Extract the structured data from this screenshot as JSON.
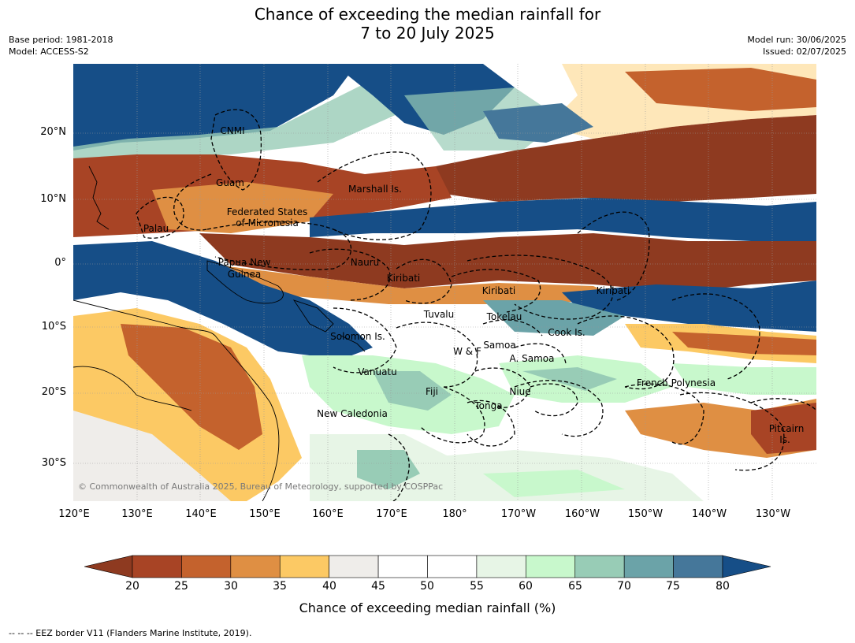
{
  "title": {
    "line1": "Chance of exceeding the median rainfall for",
    "line2": "7 to 20 July 2025"
  },
  "meta": {
    "base_period": "Base period: 1981-2018",
    "model": "Model: ACCESS-S2",
    "model_run": "Model run: 30/06/2025",
    "issued": "Issued: 02/07/2025"
  },
  "lat_labels": [
    "20°N",
    "10°N",
    "0°",
    "10°S",
    "20°S",
    "30°S"
  ],
  "lon_labels": [
    "120°E",
    "130°E",
    "140°E",
    "150°E",
    "160°E",
    "170°E",
    "180°",
    "170°W",
    "160°W",
    "150°W",
    "140°W",
    "130°W"
  ],
  "regions": {
    "cnmi": "CNMI",
    "guam": "Guam",
    "marshall": "Marshall Is.",
    "fsm_1": "Federated States",
    "fsm_2": "of Micronesia",
    "palau": "Palau",
    "png_1": "Papua New",
    "png_2": "Guinea",
    "nauru": "Nauru",
    "kiribati_w": "Kiribati",
    "kiribati_c": "Kiribati",
    "kiribati_e": "Kiribati",
    "tuvalu": "Tuvalu",
    "tokelau": "Tokelau",
    "cook": "Cook Is.",
    "solomon": "Solomon Is.",
    "samoa": "Samoa",
    "wf": "W & F",
    "asamoa": "A. Samoa",
    "vanuatu": "Vanuatu",
    "fiji": "Fiji",
    "niue": "Niue",
    "tonga": "Tonga",
    "frenchpoly": "French Polynesia",
    "newcal": "New Caledonia",
    "pitcairn_1": "Pitcairn",
    "pitcairn_2": "Is."
  },
  "copyright": "© Commonwealth of Australia 2025, Bureau of Meteorology, supported by COSPPac",
  "colorbar": {
    "ticks": [
      "20",
      "25",
      "30",
      "35",
      "40",
      "45",
      "50",
      "55",
      "60",
      "65",
      "70",
      "75",
      "80"
    ],
    "colors": [
      "#a84425",
      "#c4622d",
      "#df8f43",
      "#fcc964",
      "#efedea",
      "#ffffff",
      "#ffffff",
      "#e7f5e6",
      "#c8f8cc",
      "#98ccb6",
      "#6ba3a8",
      "#45779a"
    ],
    "under_color": "#8e3a20",
    "over_color": "#164e87",
    "label": "Chance of exceeding median rainfall (%)"
  },
  "footnote": "--  --  -- EEZ border V11 (Flanders Marine Institute, 2019)."
}
